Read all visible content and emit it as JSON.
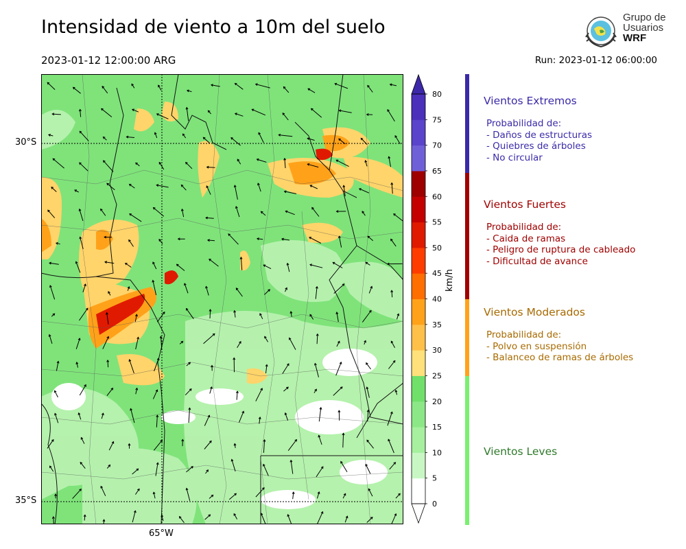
{
  "header": {
    "title": "Intensidad de viento a 10m del suelo",
    "valid_time": "2023-01-12 12:00:00 ARG",
    "run": "Run: 2023-01-12 06:00:00"
  },
  "logo": {
    "line1": "Grupo de",
    "line2": "Usuarios",
    "line3": "WRF",
    "icon": "globe-emblem-icon"
  },
  "map": {
    "lat_labels": [
      "30°S",
      "35°S"
    ],
    "lon_labels": [
      "65°W"
    ],
    "background": "#7fe37a"
  },
  "colorbar": {
    "units": "km/h",
    "levels": [
      0,
      5,
      10,
      15,
      20,
      25,
      30,
      35,
      40,
      45,
      50,
      55,
      60,
      65,
      70,
      75,
      80
    ],
    "tick_labels": [
      "0",
      "5",
      "10",
      "15",
      "20",
      "25",
      "30",
      "35",
      "40",
      "45",
      "50",
      "55",
      "60",
      "65",
      "70",
      "75",
      "80"
    ],
    "colors": [
      "#ffffff",
      "#c9f7c4",
      "#a6f09f",
      "#8ce886",
      "#70e06a",
      "#ffe07a",
      "#ffc04a",
      "#ffa21a",
      "#ff6e00",
      "#ff3c00",
      "#e01a00",
      "#c40000",
      "#9e0000",
      "#7060d8",
      "#5a44cc",
      "#4a30bb"
    ],
    "extend_over": "#3d28aa"
  },
  "categories": [
    {
      "title": "Vientos Extremos",
      "color": "#3a2aa8",
      "text_color": "#3a2aa8",
      "lines": [
        "Probabilidad de:",
        "- Daños de estructuras",
        "- Quiebres de árboles",
        "- No circular"
      ]
    },
    {
      "title": "Vientos Fuertes",
      "color": "#a00000",
      "text_color": "#a00000",
      "lines": [
        "Probabilidad de:",
        "- Caida de ramas",
        "- Peligro de ruptura de cableado",
        "- Dificultad de avance"
      ]
    },
    {
      "title": "Vientos Moderados",
      "color": "#ffa21a",
      "text_color": "#a86a00",
      "lines": [
        "Probabilidad de:",
        "- Polvo en suspensión",
        "- Balanceo de ramas de árboles"
      ]
    },
    {
      "title": "Vientos Leves",
      "color": "#7af070",
      "text_color": "#2e7a2a",
      "lines": []
    }
  ]
}
